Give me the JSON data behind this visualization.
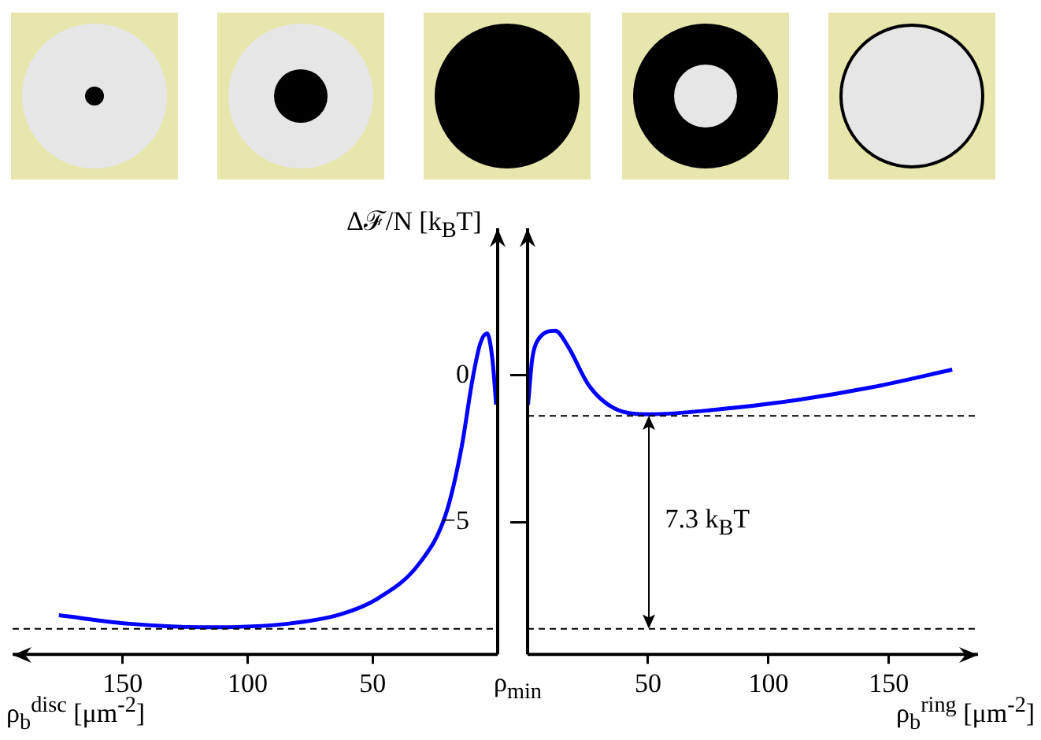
{
  "chart_data": [
    {
      "type": "line",
      "ylabel": "Δℱ/N [k$_{B}$T]",
      "xlabel": "ρ$_{b}$$^{disc}$ [μm$^{-2}$]",
      "xlim": [
        194,
        0
      ],
      "xticks": [
        150,
        100,
        50
      ],
      "ylim": [
        -9.5,
        5
      ],
      "tick_labels": "x",
      "x": [
        175.5,
        147,
        115.6,
        84,
        62.9,
        48,
        31.2,
        20.7,
        14.4,
        10.1,
        7.0,
        4.2,
        2.1,
        0.6
      ],
      "values": [
        -8.17,
        -8.46,
        -8.58,
        -8.46,
        -8.14,
        -7.6,
        -6.39,
        -4.72,
        -2.44,
        -0.16,
        1.07,
        1.42,
        0.54,
        -1.0
      ],
      "color": "#0000ff",
      "ref_lines": [
        {
          "axis": "y",
          "value": -8.63,
          "line_style": "dashed"
        }
      ]
    },
    {
      "type": "line",
      "xlabel": "ρ$_{b}$$^{ring}$ [μm$^{-2}$]",
      "xlim": [
        0,
        187
      ],
      "xticks": [
        50,
        100,
        150
      ],
      "ylim": [
        -9.5,
        5
      ],
      "yticks": [
        0,
        -5
      ],
      "x": [
        0.2,
        1.9,
        4.0,
        11.5,
        16.8,
        25.3,
        35.9,
        50.9,
        78.5,
        110.4,
        142.3,
        176.3
      ],
      "values": [
        -1.0,
        0.54,
        1.16,
        1.51,
        0.98,
        -0.33,
        -1.12,
        -1.33,
        -1.17,
        -0.86,
        -0.42,
        0.19
      ],
      "color": "#0000ff",
      "ref_lines": [
        {
          "axis": "y",
          "value": -1.38,
          "line_style": "dashed"
        },
        {
          "axis": "y",
          "value": -8.63,
          "line_style": "dashed"
        }
      ],
      "annotations": [
        "7.3 k$_{B}$T",
        "ρ$_{min}$"
      ]
    }
  ]
}
